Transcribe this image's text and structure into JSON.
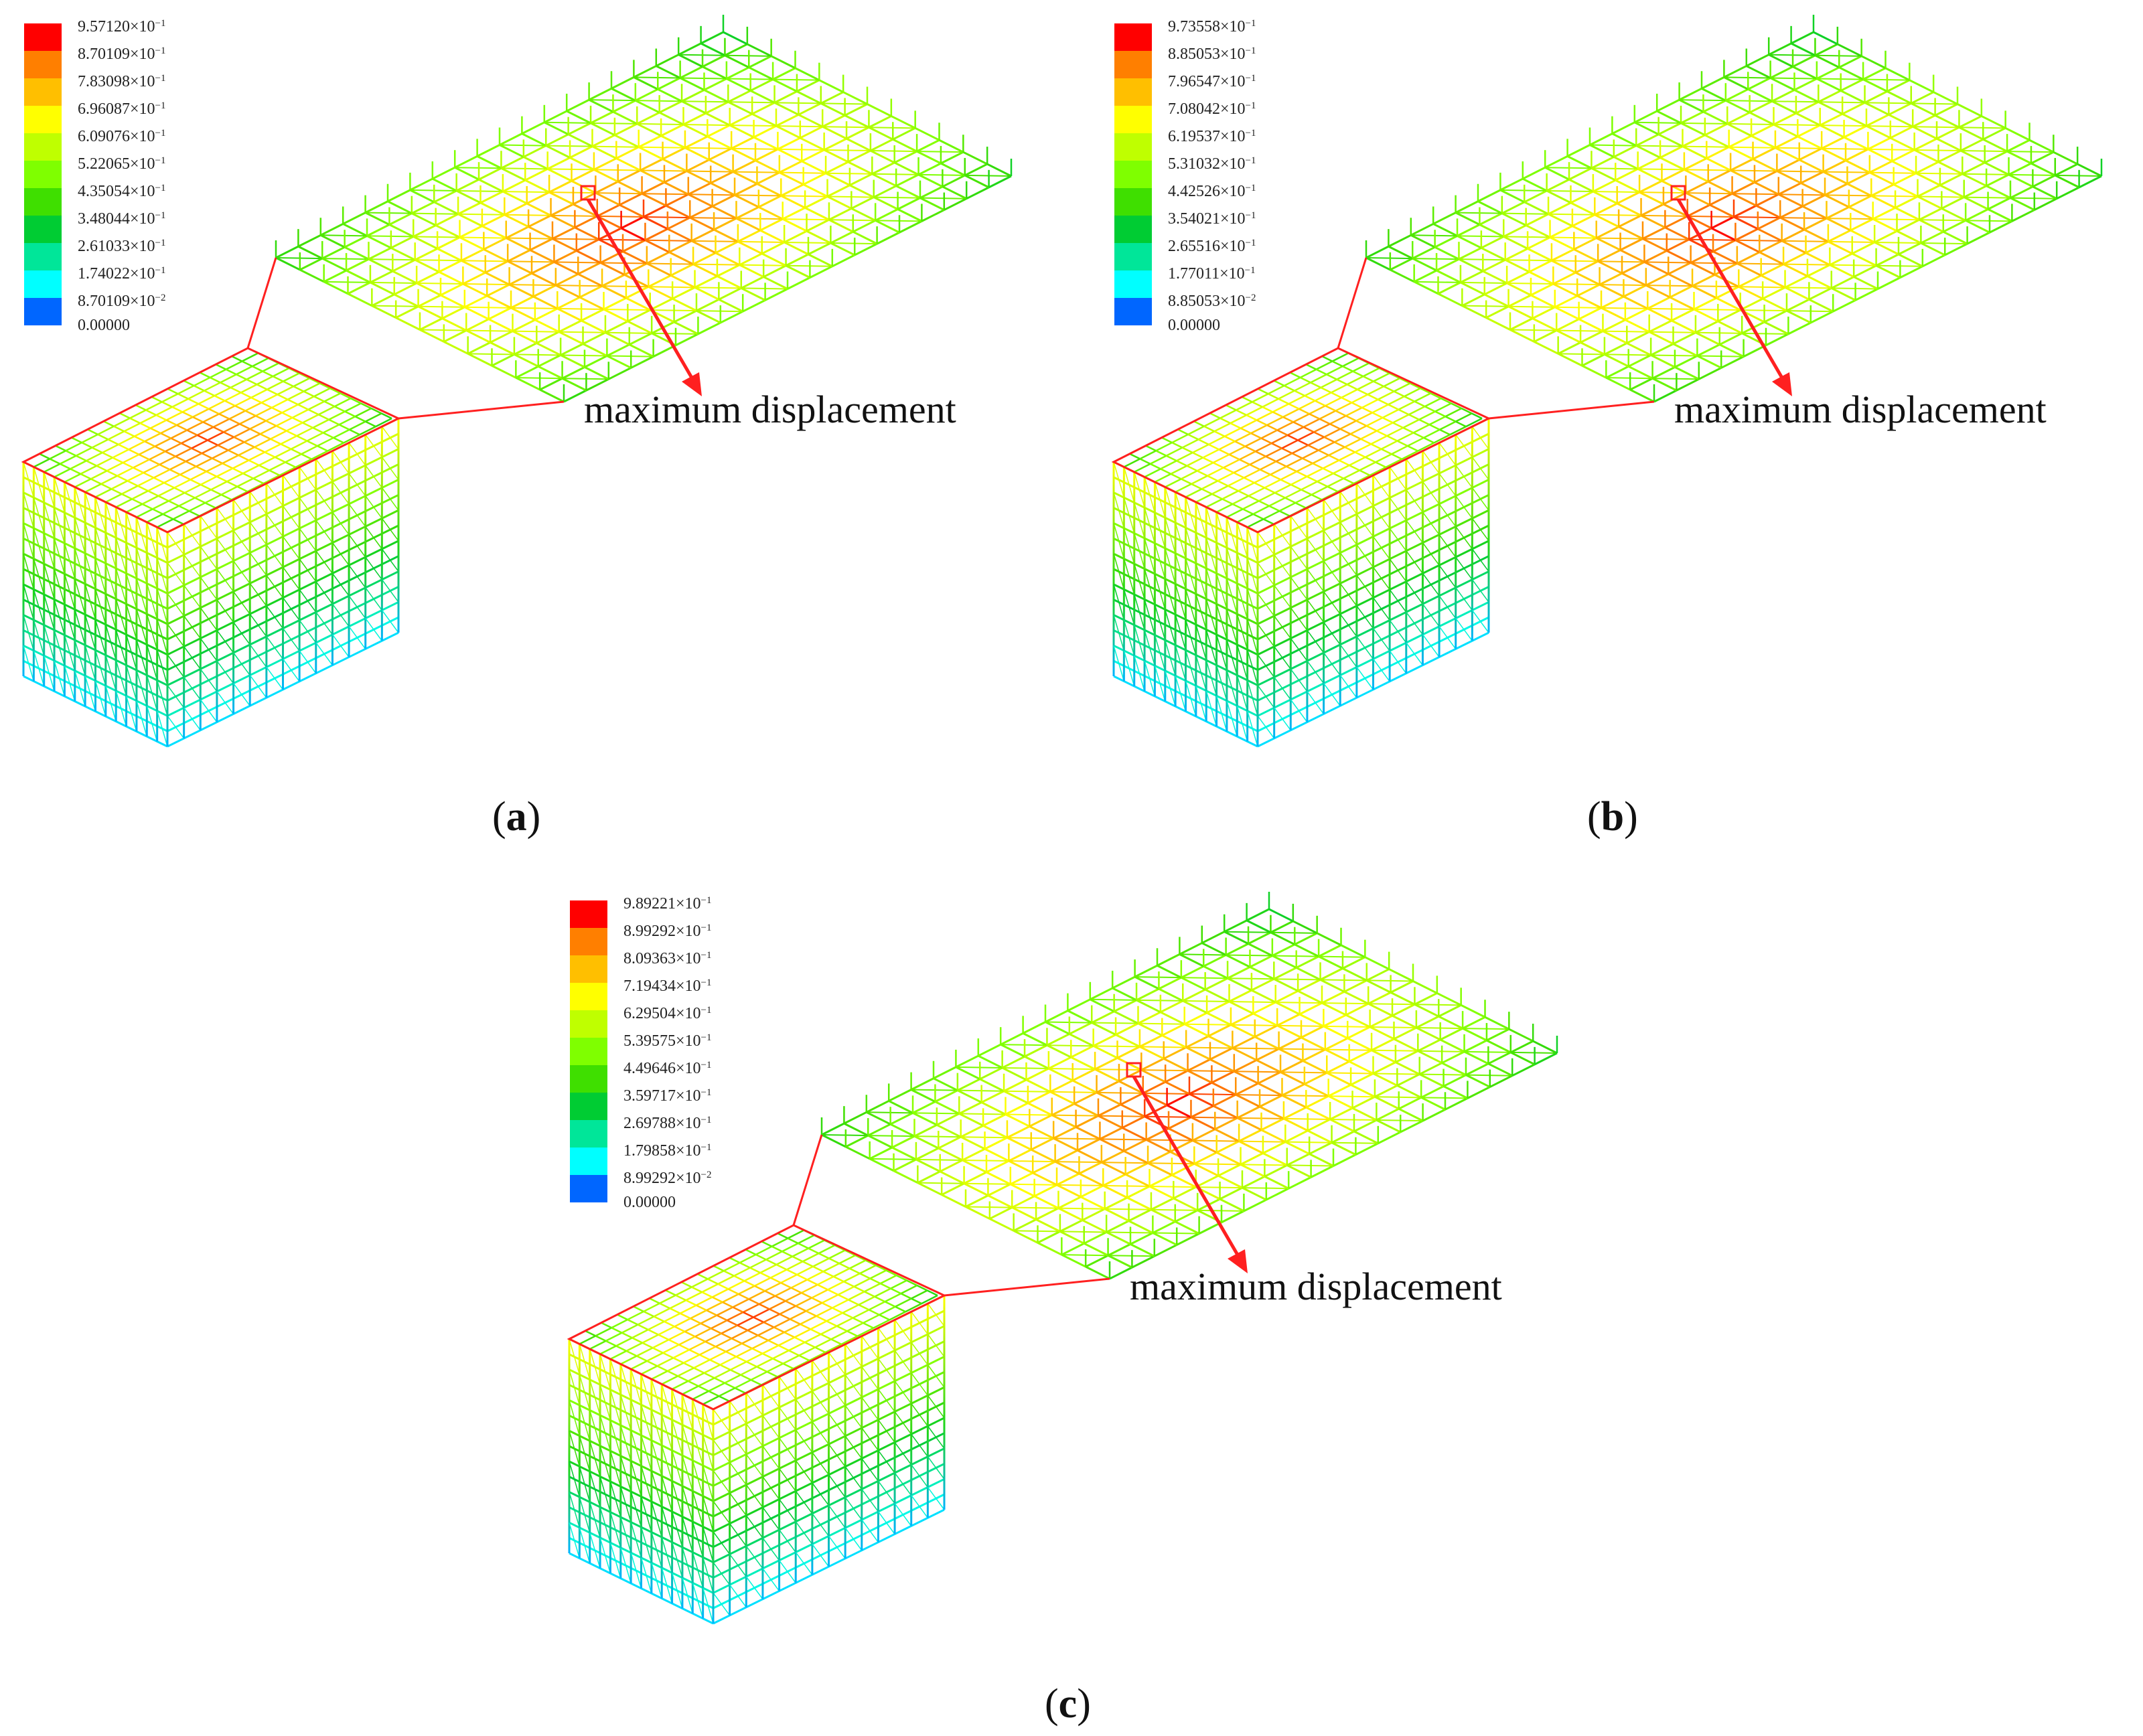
{
  "figure": {
    "panels": [
      {
        "id": "a",
        "caption_open": "(",
        "caption_letter": "a",
        "caption_close": ")",
        "annotation": "maximum displacement",
        "legend": {
          "colors": [
            "#ff0000",
            "#ff7f00",
            "#ffbf00",
            "#ffff00",
            "#bfff00",
            "#7fff00",
            "#3fdf00",
            "#00cc33",
            "#00e699",
            "#00ffff",
            "#0066ff"
          ],
          "labels": [
            {
              "mantissa": "9.57120",
              "exponent": "−1"
            },
            {
              "mantissa": "8.70109",
              "exponent": "−1"
            },
            {
              "mantissa": "7.83098",
              "exponent": "−1"
            },
            {
              "mantissa": "6.96087",
              "exponent": "−1"
            },
            {
              "mantissa": "6.09076",
              "exponent": "−1"
            },
            {
              "mantissa": "5.22065",
              "exponent": "−1"
            },
            {
              "mantissa": "4.35054",
              "exponent": "−1"
            },
            {
              "mantissa": "3.48044",
              "exponent": "−1"
            },
            {
              "mantissa": "2.61033",
              "exponent": "−1"
            },
            {
              "mantissa": "1.74022",
              "exponent": "−1"
            },
            {
              "mantissa": "8.70109",
              "exponent": "−2"
            },
            {
              "mantissa": "0.00000",
              "exponent": ""
            }
          ]
        }
      },
      {
        "id": "b",
        "caption_open": "(",
        "caption_letter": "b",
        "caption_close": ")",
        "annotation": "maximum displacement",
        "legend": {
          "colors": [
            "#ff0000",
            "#ff7f00",
            "#ffbf00",
            "#ffff00",
            "#bfff00",
            "#7fff00",
            "#3fdf00",
            "#00cc33",
            "#00e699",
            "#00ffff",
            "#0066ff"
          ],
          "labels": [
            {
              "mantissa": "9.73558",
              "exponent": "−1"
            },
            {
              "mantissa": "8.85053",
              "exponent": "−1"
            },
            {
              "mantissa": "7.96547",
              "exponent": "−1"
            },
            {
              "mantissa": "7.08042",
              "exponent": "−1"
            },
            {
              "mantissa": "6.19537",
              "exponent": "−1"
            },
            {
              "mantissa": "5.31032",
              "exponent": "−1"
            },
            {
              "mantissa": "4.42526",
              "exponent": "−1"
            },
            {
              "mantissa": "3.54021",
              "exponent": "−1"
            },
            {
              "mantissa": "2.65516",
              "exponent": "−1"
            },
            {
              "mantissa": "1.77011",
              "exponent": "−1"
            },
            {
              "mantissa": "8.85053",
              "exponent": "−2"
            },
            {
              "mantissa": "0.00000",
              "exponent": ""
            }
          ]
        }
      },
      {
        "id": "c",
        "caption_open": "(",
        "caption_letter": "c",
        "caption_close": ")",
        "annotation": "maximum displacement",
        "legend": {
          "colors": [
            "#ff0000",
            "#ff7f00",
            "#ffbf00",
            "#ffff00",
            "#bfff00",
            "#7fff00",
            "#3fdf00",
            "#00cc33",
            "#00e699",
            "#00ffff",
            "#0066ff"
          ],
          "labels": [
            {
              "mantissa": "9.89221",
              "exponent": "−1"
            },
            {
              "mantissa": "8.99292",
              "exponent": "−1"
            },
            {
              "mantissa": "8.09363",
              "exponent": "−1"
            },
            {
              "mantissa": "7.19434",
              "exponent": "−1"
            },
            {
              "mantissa": "6.29504",
              "exponent": "−1"
            },
            {
              "mantissa": "5.39575",
              "exponent": "−1"
            },
            {
              "mantissa": "4.49646",
              "exponent": "−1"
            },
            {
              "mantissa": "3.59717",
              "exponent": "−1"
            },
            {
              "mantissa": "2.69788",
              "exponent": "−1"
            },
            {
              "mantissa": "1.79858",
              "exponent": "−1"
            },
            {
              "mantissa": "8.99292",
              "exponent": "−2"
            },
            {
              "mantissa": "0.00000",
              "exponent": ""
            }
          ]
        }
      }
    ],
    "colors": {
      "callout": "#ff2020",
      "plate": "#c8c83a",
      "plate_hot": "#e05040"
    }
  }
}
